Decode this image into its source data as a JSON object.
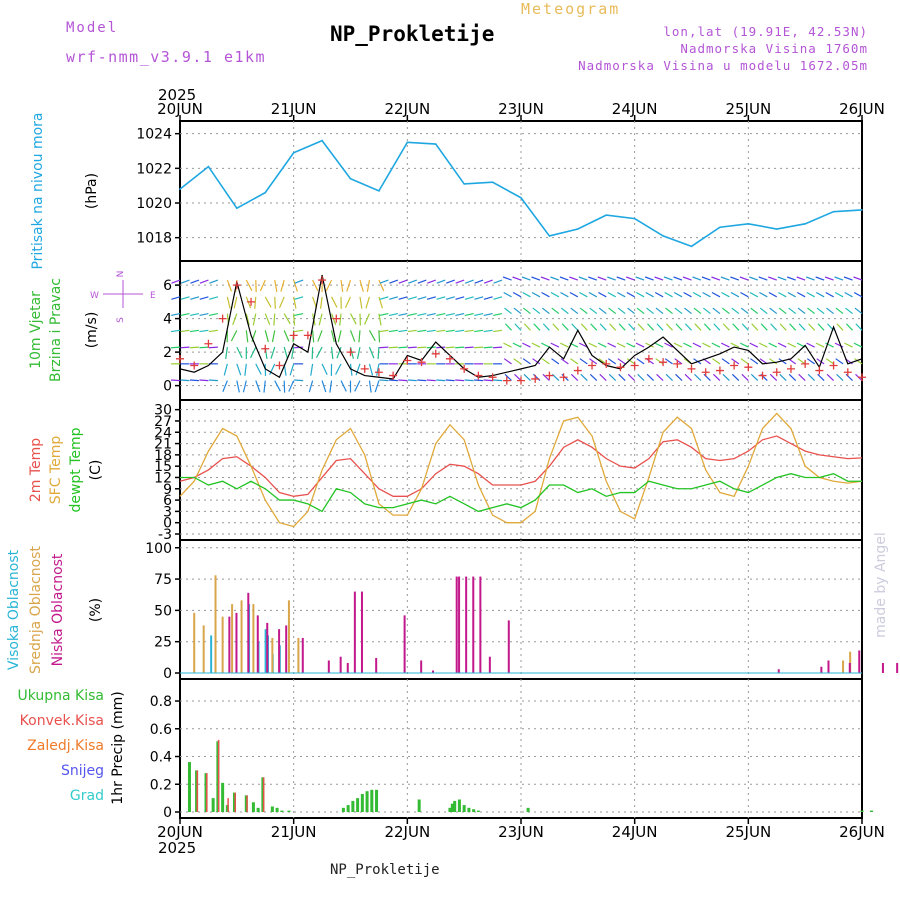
{
  "header": {
    "model_label": "Model",
    "model_name": "wrf-nmm_v3.9.1 e1km",
    "meteogram_label": "Meteogram",
    "station": "NP_Prokletije",
    "location": "lon,lat (19.91E, 42.53N)",
    "elevation": "Nadmorska Visina 1760m",
    "model_elevation": "Nadmorska Visina u modelu 1672.05m",
    "footer_station": "NP_Prokletije",
    "credit": "made by Angel"
  },
  "colors": {
    "pressure": "#1ea7e1",
    "temp2m": "#e8514d",
    "sfc_temp": "#e0a93a",
    "dewpoint": "#22c322",
    "cloud_high": "#2ab5d6",
    "cloud_mid": "#d9a54a",
    "cloud_low": "#c2188b",
    "precip_total": "#33bb33",
    "precip_conv": "#e8514d",
    "precip_frozen": "#ef7a2a",
    "snow": "#5555ee",
    "hail": "#33cccc",
    "purple_text": "#b455d6",
    "wind_speed": "#000000",
    "wind_gust": "#e03c3c"
  },
  "chart_data": [
    {
      "type": "line",
      "name": "pressure",
      "ylabel": "Pritisak na nivou mora",
      "unit": "(hPa)",
      "yticks": [
        1018,
        1020,
        1022,
        1024
      ],
      "ylim": [
        1017,
        1024.5
      ],
      "x_hours": [
        0,
        6,
        12,
        18,
        24,
        30,
        36,
        42,
        48,
        54,
        60,
        66,
        72,
        78,
        84,
        90,
        96,
        102,
        108,
        114,
        120,
        126,
        132,
        138,
        144
      ],
      "values": [
        1020.8,
        1022.1,
        1019.7,
        1020.6,
        1022.9,
        1023.6,
        1021.4,
        1020.7,
        1023.5,
        1023.4,
        1021.1,
        1021.2,
        1020.3,
        1018.1,
        1018.5,
        1019.3,
        1019.1,
        1018.1,
        1017.5,
        1018.6,
        1018.8,
        1018.5,
        1018.8,
        1019.5,
        1019.6
      ],
      "title": "NP_Prokletije",
      "xlabel_top": "2025"
    },
    {
      "type": "line",
      "name": "wind",
      "ylabel": [
        "10m Vjetar",
        "Brzina i Pravac"
      ],
      "unit": "(m/s)",
      "yticks": [
        0,
        2,
        4,
        6
      ],
      "ylim": [
        -0.5,
        7.2
      ],
      "compass": {
        "north": "N",
        "south": "S",
        "west": "W",
        "east": "E"
      },
      "x_hours": [
        0,
        3,
        6,
        9,
        12,
        15,
        18,
        21,
        24,
        27,
        30,
        33,
        36,
        39,
        42,
        45,
        48,
        51,
        54,
        57,
        60,
        63,
        66,
        69,
        72,
        75,
        78,
        81,
        84,
        87,
        90,
        93,
        96,
        99,
        102,
        105,
        108,
        111,
        114,
        117,
        120,
        123,
        126,
        129,
        132,
        135,
        138,
        141,
        144
      ],
      "speed": [
        1.0,
        0.8,
        1.2,
        2.0,
        6.2,
        3.0,
        1.0,
        0.5,
        2.5,
        2.0,
        6.6,
        2.5,
        1.0,
        0.6,
        0.5,
        0.4,
        1.8,
        1.5,
        2.6,
        1.8,
        1.0,
        0.5,
        0.6,
        0.8,
        1.0,
        1.2,
        2.3,
        1.6,
        3.3,
        1.8,
        1.2,
        1.0,
        1.8,
        2.3,
        2.9,
        2.1,
        1.3,
        1.6,
        1.9,
        2.3,
        2.1,
        1.3,
        1.4,
        1.6,
        2.4,
        1.1,
        3.5,
        1.3,
        1.6
      ],
      "gust": [
        1.6,
        1.2,
        2.5,
        4.0,
        6.0,
        5.0,
        2.2,
        1.2,
        3.0,
        3.0,
        6.3,
        4.0,
        2.0,
        1.0,
        0.8,
        0.6,
        1.5,
        1.4,
        1.9,
        1.6,
        1.0,
        0.6,
        0.5,
        0.3,
        0.3,
        0.4,
        0.6,
        0.5,
        0.9,
        1.2,
        1.3,
        1.1,
        1.2,
        1.6,
        1.4,
        1.3,
        1.0,
        0.8,
        0.9,
        1.2,
        1.1,
        0.6,
        0.8,
        1.0,
        1.3,
        0.9,
        1.2,
        0.8,
        0.5
      ]
    },
    {
      "type": "line",
      "name": "temperature",
      "ylabel": [
        "2m Temp",
        "SFC Temp",
        "dewpt Temp"
      ],
      "unit": "(C)",
      "yticks": [
        -3,
        0,
        3,
        6,
        9,
        12,
        15,
        18,
        21,
        24,
        27,
        30
      ],
      "ylim": [
        -3,
        31.5
      ],
      "x_hours": [
        0,
        3,
        6,
        9,
        12,
        15,
        18,
        21,
        24,
        27,
        30,
        33,
        36,
        39,
        42,
        45,
        48,
        51,
        54,
        57,
        60,
        63,
        66,
        69,
        72,
        75,
        78,
        81,
        84,
        87,
        90,
        93,
        96,
        99,
        102,
        105,
        108,
        111,
        114,
        117,
        120,
        123,
        126,
        129,
        132,
        135,
        138,
        141,
        144
      ],
      "series": [
        {
          "name": "2m Temp",
          "values": [
            11,
            12,
            14,
            17,
            17.5,
            15,
            12,
            8,
            7,
            7.5,
            12,
            16.5,
            17,
            13,
            9,
            7,
            7,
            9,
            13,
            15.5,
            15,
            13,
            10,
            10,
            10,
            11,
            15,
            20,
            22,
            20,
            17,
            15,
            14.5,
            17,
            21.5,
            22,
            20,
            17,
            16.5,
            17,
            19,
            22,
            23,
            21,
            19,
            18,
            17.5,
            17,
            17.2
          ]
        },
        {
          "name": "SFC Temp",
          "values": [
            7,
            11,
            19,
            25,
            23,
            15,
            6,
            0,
            -1,
            3,
            14,
            22,
            25,
            18,
            5,
            2,
            2,
            9,
            21,
            26,
            22,
            10,
            2,
            0,
            0,
            3,
            17,
            27,
            28,
            23,
            11,
            3,
            1,
            12,
            24,
            28,
            25,
            14,
            8,
            7,
            15,
            25,
            29,
            25,
            15,
            12,
            11,
            10.5,
            11
          ]
        },
        {
          "name": "dewpt Temp",
          "values": [
            12,
            12,
            10,
            11,
            9,
            11,
            9,
            6,
            6,
            5,
            3,
            9,
            8,
            5,
            4,
            4,
            5,
            6,
            5,
            7,
            5,
            3,
            4,
            5,
            4,
            6,
            10,
            10,
            8,
            9,
            7,
            8,
            8,
            11,
            10,
            9,
            9,
            10,
            11,
            9,
            8,
            10,
            12,
            13,
            12,
            12,
            13,
            11,
            11
          ]
        }
      ]
    },
    {
      "type": "bar",
      "name": "cloudiness",
      "ylabel": [
        "Visoka Oblacnost",
        "Srednja Oblacnost",
        "Niska Oblacnost"
      ],
      "unit": "(%)",
      "yticks": [
        0,
        25,
        50,
        75,
        100
      ],
      "ylim": [
        0,
        103
      ],
      "series": [
        {
          "name": "Visoka Oblacnost",
          "x_hours": [
            7,
            15,
            17,
            18.5,
            19,
            20,
            21.5
          ],
          "values": [
            30,
            55,
            25,
            35,
            30,
            15,
            22
          ]
        },
        {
          "name": "Srednja Oblacnost",
          "x_hours": [
            3,
            5,
            7.5,
            9,
            11,
            13,
            15.5,
            19.5,
            23,
            25,
            140,
            141.5
          ],
          "values": [
            48,
            38,
            78,
            45,
            55,
            58,
            55,
            28,
            58,
            28,
            10,
            17
          ]
        },
        {
          "name": "Niska Oblacnost",
          "x_hours": [
            10,
            11.5,
            14,
            16,
            18,
            20.5,
            22,
            25.5,
            31,
            33.5,
            35,
            36.5,
            38,
            41,
            47,
            50.5,
            53,
            58,
            58.5,
            60,
            61.5,
            63,
            65,
            69,
            126,
            135,
            136.5,
            141,
            143,
            148,
            151
          ],
          "values": [
            45,
            48,
            64,
            46,
            40,
            35,
            38,
            28,
            10,
            13,
            8,
            65,
            65,
            12,
            46,
            10,
            2,
            77,
            77,
            77,
            77,
            77,
            13,
            42,
            3,
            5,
            10,
            8,
            18,
            8,
            8
          ]
        }
      ]
    },
    {
      "type": "bar",
      "name": "precipitation",
      "ylabel": [
        "Ukupna Kisa",
        "Konvek.Kisa",
        "Zaledj.Kisa",
        "Snijeg",
        "Grad"
      ],
      "unit": "1hr Precip (mm)",
      "yticks": [
        0,
        0.2,
        0.4,
        0.6,
        0.8
      ],
      "ylim": [
        0,
        0.93
      ],
      "xtick_labels": [
        "20JUN",
        "21JUN",
        "22JUN",
        "23JUN",
        "24JUN",
        "25JUN",
        "26JUN"
      ],
      "xlabel_bottom": "2025",
      "series": [
        {
          "name": "Ukupna Kisa",
          "x_hours": [
            2,
            3.5,
            5.5,
            7,
            8,
            9,
            10,
            11.5,
            14,
            15.5,
            16.5,
            17.5,
            19.5,
            20.5,
            21.5,
            23,
            34.5,
            35.5,
            36.5,
            37.5,
            38.5,
            39.5,
            40.5,
            41.5,
            50.5,
            57,
            57.5,
            58,
            59,
            60,
            61,
            62,
            63,
            73.5,
            144,
            146,
            157,
            161
          ],
          "values": [
            0.36,
            0.3,
            0.28,
            0.1,
            0.51,
            0.21,
            0.05,
            0.14,
            0.12,
            0.07,
            0.03,
            0.25,
            0.04,
            0.03,
            0.01,
            0.01,
            0.03,
            0.05,
            0.08,
            0.1,
            0.13,
            0.15,
            0.16,
            0.16,
            0.09,
            0.03,
            0.06,
            0.08,
            0.09,
            0.05,
            0.03,
            0.02,
            0.01,
            0.03,
            0.01,
            0.01,
            0.14,
            0.17
          ]
        },
        {
          "name": "Konvek.Kisa",
          "x_hours": [
            3.5,
            5.5,
            8,
            10,
            11.5,
            14,
            17.5
          ],
          "values": [
            0.3,
            0.28,
            0.52,
            0.1,
            0.14,
            0.12,
            0.25
          ]
        }
      ]
    }
  ]
}
